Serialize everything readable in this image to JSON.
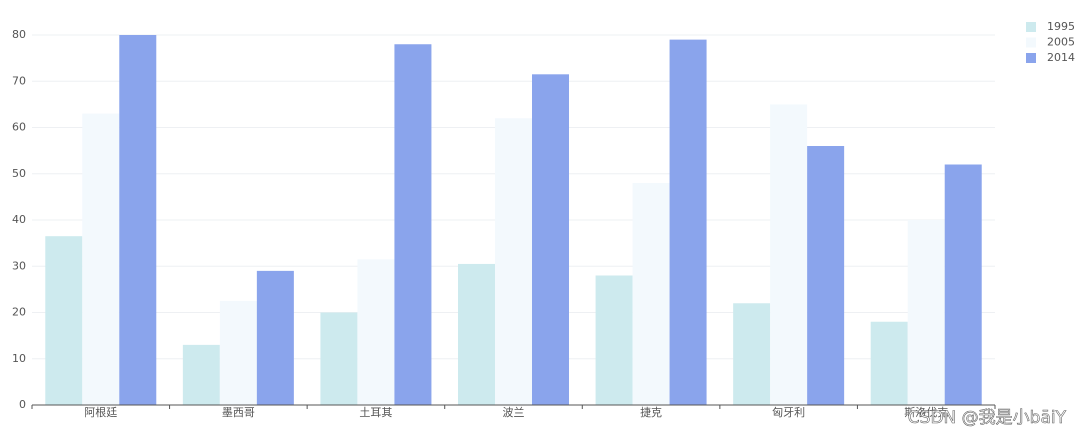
{
  "chart_data": {
    "type": "bar",
    "categories": [
      "阿根廷",
      "墨西哥",
      "土耳其",
      "波兰",
      "捷克",
      "匈牙利",
      "斯洛伐克"
    ],
    "series": [
      {
        "name": "1995",
        "color": "#cdeaee",
        "values": [
          36.5,
          13,
          20,
          30.5,
          28,
          22,
          18
        ]
      },
      {
        "name": "2005",
        "color": "#f3f9fd",
        "values": [
          63,
          22.5,
          31.5,
          62,
          48,
          65,
          40
        ]
      },
      {
        "name": "2014",
        "color": "#8aa4ec",
        "values": [
          80,
          29,
          78,
          71.5,
          79,
          56,
          52
        ]
      }
    ],
    "ylim": [
      0,
      80
    ],
    "yticks": [
      0,
      10,
      20,
      30,
      40,
      50,
      60,
      70,
      80
    ],
    "grid": true,
    "legend": "top-right",
    "watermark": "CSDN @我是小bāiY"
  }
}
